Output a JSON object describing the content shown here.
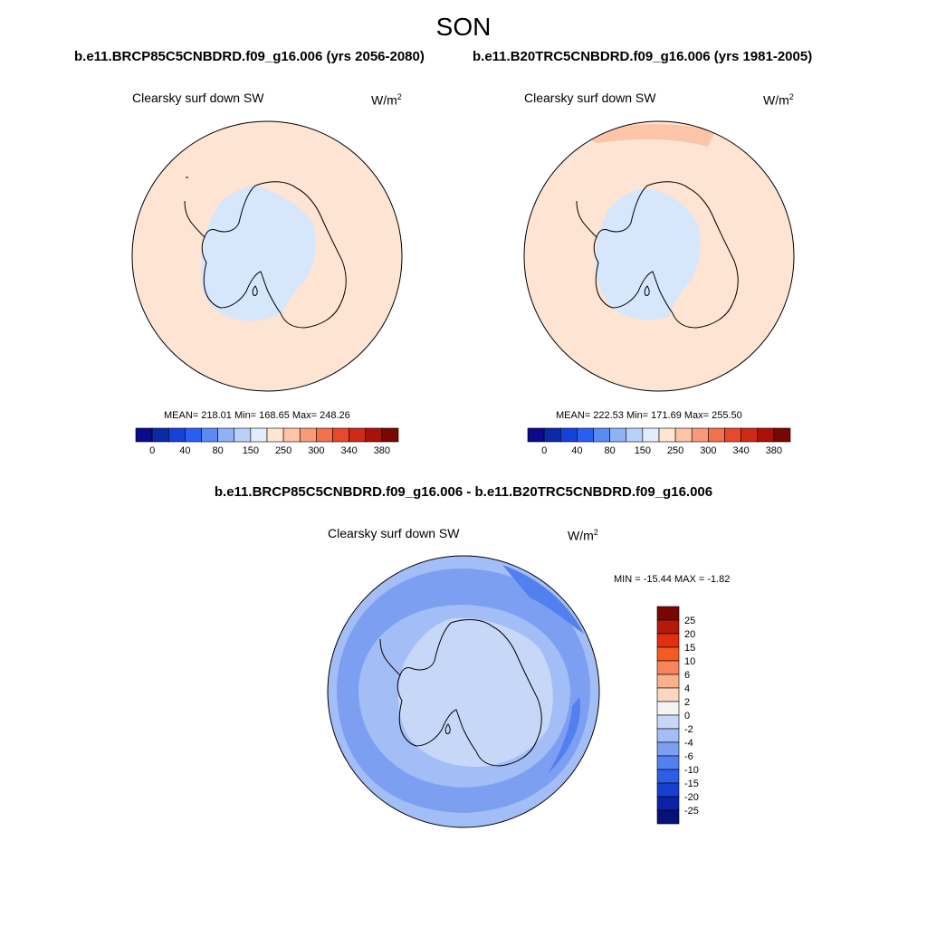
{
  "figure": {
    "title": "SON",
    "left_panel": {
      "case": "b.e11.BRCP85C5CNBDRD.f09_g16.006 (yrs 2056-2080)",
      "variable": "Clearsky surf down SW",
      "units_base": "W/m",
      "units_exp": "2",
      "stats": "MEAN= 218.01  Min= 168.65  Max= 248.26"
    },
    "right_panel": {
      "case": "b.e11.B20TRC5CNBDRD.f09_g16.006 (yrs 1981-2005)",
      "variable": "Clearsky surf down SW",
      "units_base": "W/m",
      "units_exp": "2",
      "stats": "MEAN= 222.53  Min= 171.69  Max= 255.50"
    },
    "diff_panel": {
      "case": "b.e11.BRCP85C5CNBDRD.f09_g16.006 - b.e11.B20TRC5CNBDRD.f09_g16.006",
      "variable": "Clearsky surf down SW",
      "units_base": "W/m",
      "units_exp": "2",
      "stats": "MIN = -15.44 MAX =  -1.82"
    },
    "top_colorbar_ticks": [
      "0",
      "40",
      "80",
      "150",
      "250",
      "300",
      "340",
      "380"
    ],
    "top_colorbar_colors": [
      "#0a0a8a",
      "#0b2aa8",
      "#1541d8",
      "#2a5ef0",
      "#5b8af5",
      "#8fb2f7",
      "#b9d0f8",
      "#e2ecfb",
      "#fde4d3",
      "#fcc4a8",
      "#f99a78",
      "#f4714d",
      "#e8482c",
      "#cf2a16",
      "#a81208",
      "#7a0602"
    ],
    "diff_colorbar_labels": [
      "25",
      "20",
      "15",
      "10",
      "6",
      "4",
      "2",
      "0",
      "-2",
      "-4",
      "-6",
      "-10",
      "-15",
      "-20",
      "-25"
    ],
    "diff_colorbar_colors": [
      "#7a0602",
      "#b41a08",
      "#e03010",
      "#f55a22",
      "#f8845a",
      "#fab08c",
      "#fcd6c0",
      "#f4f4f4",
      "#c6d7f8",
      "#a3bdf6",
      "#7c9ff2",
      "#5280ee",
      "#2d5ee8",
      "#1740d0",
      "#0a22a6",
      "#06127a"
    ],
    "colors": {
      "ocean_top": "#fde4d3",
      "ice_top": "#d6e6fb",
      "diff_base": "#a3bdf6",
      "diff_band": "#7c9ff2",
      "diff_strong": "#5280ee",
      "diff_inner": "#c6d7f8"
    }
  }
}
